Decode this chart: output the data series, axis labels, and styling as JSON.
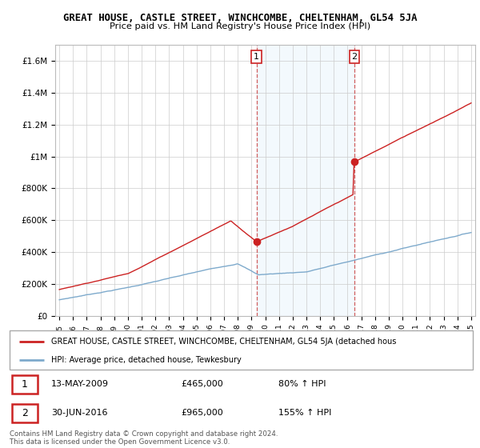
{
  "title": "GREAT HOUSE, CASTLE STREET, WINCHCOMBE, CHELTENHAM, GL54 5JA",
  "subtitle": "Price paid vs. HM Land Registry's House Price Index (HPI)",
  "hpi_label": "HPI: Average price, detached house, Tewkesbury",
  "property_label": "GREAT HOUSE, CASTLE STREET, WINCHCOMBE, CHELTENHAM, GL54 5JA (detached hous",
  "sale1_date": "13-MAY-2009",
  "sale1_price": 465000,
  "sale1_pct": "80%",
  "sale2_date": "30-JUN-2016",
  "sale2_price": 965000,
  "sale2_pct": "155%",
  "x_start_year": 1995,
  "x_end_year": 2025,
  "ylim_min": 0,
  "ylim_max": 1700000,
  "yticks": [
    0,
    200000,
    400000,
    600000,
    800000,
    1000000,
    1200000,
    1400000,
    1600000
  ],
  "ytick_labels": [
    "£0",
    "£200K",
    "£400K",
    "£600K",
    "£800K",
    "£1M",
    "£1.2M",
    "£1.4M",
    "£1.6M"
  ],
  "hpi_color": "#7eaacc",
  "property_color": "#cc2222",
  "vline_color": "#cc4444",
  "grid_color": "#cccccc",
  "shade_color": "#d0e8f8",
  "background_color": "#ffffff",
  "footer": "Contains HM Land Registry data © Crown copyright and database right 2024.\nThis data is licensed under the Open Government Licence v3.0.",
  "sale1_year": 2009.37,
  "sale2_year": 2016.5
}
